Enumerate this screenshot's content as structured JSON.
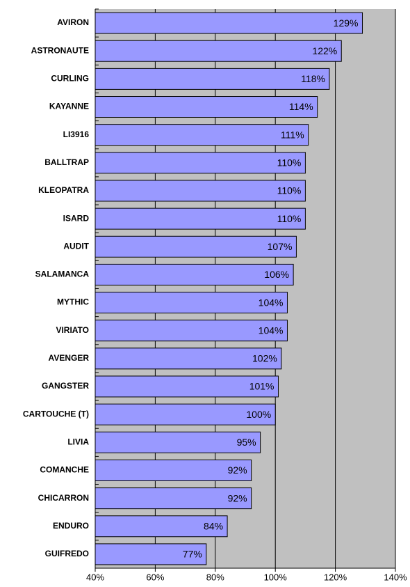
{
  "chart_data": {
    "type": "barh",
    "categories": [
      "AVIRON",
      "ASTRONAUTE",
      "CURLING",
      "KAYANNE",
      "LI3916",
      "BALLTRAP",
      "KLEOPATRA",
      "ISARD",
      "AUDIT",
      "SALAMANCA",
      "MYTHIC",
      "VIRIATO",
      "AVENGER",
      "GANGSTER",
      "CARTOUCHE (T)",
      "LIVIA",
      "COMANCHE",
      "CHICARRON",
      "ENDURO",
      "GUIFREDO"
    ],
    "values": [
      129,
      122,
      118,
      114,
      111,
      110,
      110,
      110,
      107,
      106,
      104,
      104,
      102,
      101,
      100,
      95,
      92,
      92,
      84,
      77
    ],
    "value_labels": [
      "129%",
      "122%",
      "118%",
      "114%",
      "111%",
      "110%",
      "110%",
      "110%",
      "107%",
      "106%",
      "104%",
      "104%",
      "102%",
      "101%",
      "100%",
      "95%",
      "92%",
      "92%",
      "84%",
      "77%"
    ],
    "color": "#9999ff",
    "xlim": [
      40,
      140
    ],
    "xticks": [
      {
        "value": 40,
        "label": "40%"
      },
      {
        "value": 60,
        "label": "60%"
      },
      {
        "value": 80,
        "label": "80%"
      },
      {
        "value": 100,
        "label": "100%"
      },
      {
        "value": 120,
        "label": "120%"
      },
      {
        "value": 140,
        "label": "140%"
      }
    ],
    "grid": true
  }
}
